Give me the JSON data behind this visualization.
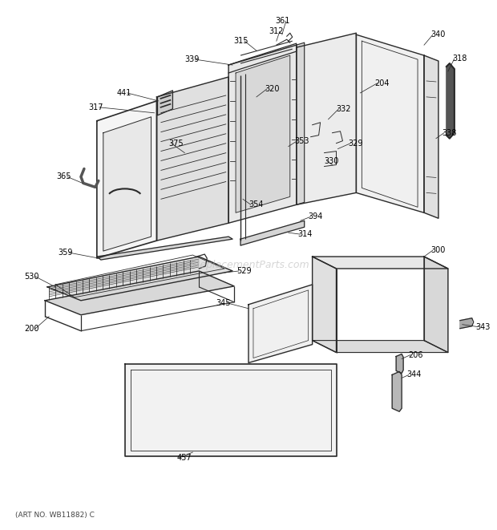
{
  "art_no": "(ART NO. WB11882) C",
  "watermark": "eReplacementParts.com",
  "background_color": "#ffffff",
  "line_color": "#2a2a2a",
  "label_color": "#000000",
  "label_fontsize": 7.0,
  "watermark_color": "#bbbbbb",
  "watermark_fontsize": 9
}
